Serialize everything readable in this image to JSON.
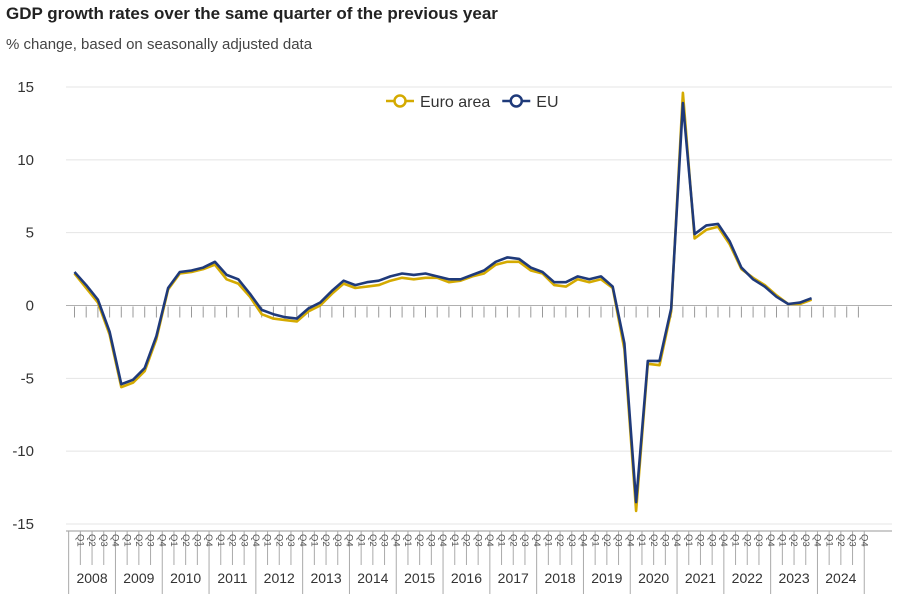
{
  "header": {
    "title": "GDP growth rates over the same quarter of the previous year",
    "subtitle": "% change, based on seasonally adjusted data"
  },
  "chart_data": {
    "type": "line",
    "title": "GDP growth rates over the same quarter of the previous year",
    "subtitle": "% change, based on seasonally adjusted data",
    "xlabel": "",
    "ylabel": "",
    "ylim": [
      -15,
      15
    ],
    "yticks": [
      15,
      10,
      5,
      0,
      -5,
      -10,
      -15
    ],
    "grid": true,
    "legend_placement": "top-center",
    "quarter_labels": [
      "Q1",
      "Q2",
      "Q3",
      "Q4"
    ],
    "years": [
      "2008",
      "2009",
      "2010",
      "2011",
      "2012",
      "2013",
      "2014",
      "2015",
      "2016",
      "2017",
      "2018",
      "2019",
      "2020",
      "2021",
      "2022",
      "2023",
      "2024"
    ],
    "series": [
      {
        "name": "Euro area",
        "color": "#d4aa00",
        "values": [
          2.2,
          1.2,
          0.2,
          -2.0,
          -5.6,
          -5.3,
          -4.5,
          -2.3,
          1.1,
          2.2,
          2.3,
          2.5,
          2.8,
          1.8,
          1.5,
          0.6,
          -0.6,
          -0.9,
          -1.0,
          -1.1,
          -0.4,
          0.0,
          0.8,
          1.5,
          1.2,
          1.3,
          1.4,
          1.7,
          1.9,
          1.8,
          1.9,
          1.9,
          1.6,
          1.7,
          2.0,
          2.2,
          2.8,
          3.0,
          3.0,
          2.4,
          2.2,
          1.4,
          1.3,
          1.8,
          1.6,
          1.8,
          1.2,
          -3.0,
          -14.1,
          -4.0,
          -4.1,
          -0.4,
          14.6,
          4.6,
          5.2,
          5.4,
          4.2,
          2.5,
          1.9,
          1.4,
          0.7,
          0.1,
          0.1,
          0.4
        ],
        "x_start": "2008-Q1",
        "x_end": "2023-Q4"
      },
      {
        "name": "EU",
        "color": "#1f3a7a",
        "values": [
          2.3,
          1.4,
          0.4,
          -1.8,
          -5.4,
          -5.1,
          -4.3,
          -2.1,
          1.2,
          2.3,
          2.4,
          2.6,
          3.0,
          2.1,
          1.8,
          0.8,
          -0.3,
          -0.6,
          -0.8,
          -0.9,
          -0.2,
          0.2,
          1.0,
          1.7,
          1.4,
          1.6,
          1.7,
          2.0,
          2.2,
          2.1,
          2.2,
          2.0,
          1.8,
          1.8,
          2.1,
          2.4,
          3.0,
          3.3,
          3.2,
          2.6,
          2.3,
          1.6,
          1.6,
          2.0,
          1.8,
          2.0,
          1.3,
          -2.6,
          -13.5,
          -3.8,
          -3.8,
          -0.2,
          13.9,
          4.9,
          5.5,
          5.6,
          4.4,
          2.6,
          1.8,
          1.3,
          0.6,
          0.1,
          0.2,
          0.5
        ],
        "x_start": "2008-Q1",
        "x_end": "2023-Q4"
      }
    ]
  }
}
